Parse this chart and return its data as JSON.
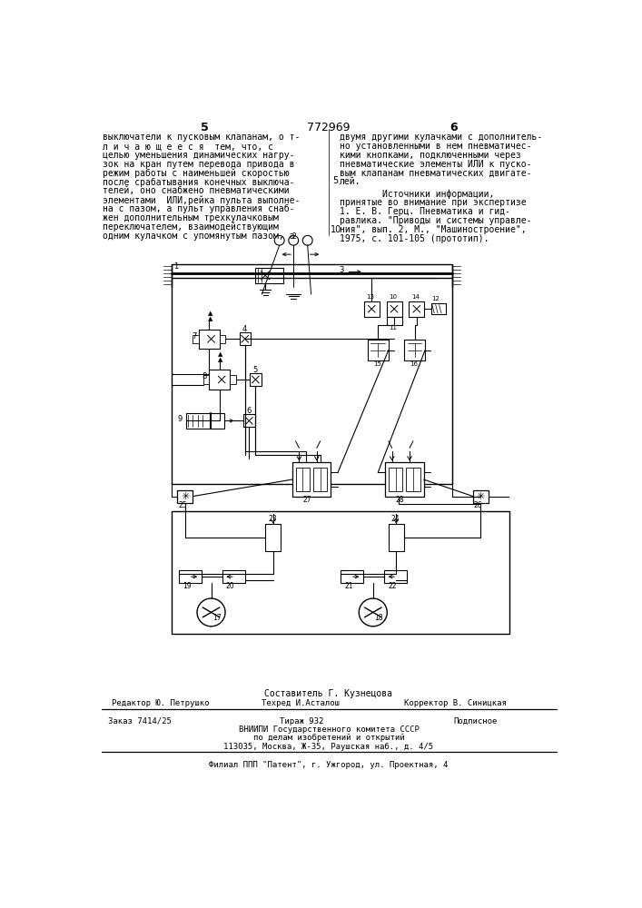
{
  "page_number_left": "5",
  "page_number_center": "772969",
  "page_number_right": "6",
  "left_column_text": [
    "выключатели к пусковым клапанам, о т-",
    "л и ч а ю щ е е с я  тем, что, с",
    "целью уменьшения динамических нагру-",
    "зок на кран путем перевода привода в",
    "режим работы с наименьшей скоростью",
    "после срабатывания конечных выключа-",
    "телей, оно снабжено пневматическими",
    "элементами  ИЛИ,рейка пульта выполне-",
    "на с пазом, а пульт управления снаб-",
    "жен дополнительным трехкулачковым",
    "переключателем, взаимодействующим",
    "одним кулачком с упомянутым пазом, а"
  ],
  "right_column_text": [
    "двумя другими кулачками с дополнитель-",
    "но установленными в нем пневматичес-",
    "кими кнопками, подключенными через",
    "пневматические элементы ИЛИ к пуско-",
    "вым клапанам пневматических двигате-",
    "лей.",
    "        Источники информации,",
    "принятые во внимание при экспертизе",
    "1. Е. В. Герц. Пневматика и гид-",
    "равлика. \"Приводы и системы управле-",
    "ния\", вып. 2, М., \"Машиностроение\",",
    "1975, с. 101-105 (прототип)."
  ],
  "line5_marker": "5",
  "line10_marker": "10",
  "footer_sestavitel": "Составитель Г. Кузнецова",
  "footer_redaktor": "Редактор Ю. Петрушко",
  "footer_tekhred": "Техред И.Асталош",
  "footer_korrektor": "Корректор В. Синицкая",
  "footer_zakaz": "Заказ 7414/25",
  "footer_tirazh": "Тираж 932",
  "footer_podpisnoe": "Подписное",
  "footer_vniipii": "ВНИИПИ Государственного комитета СССР",
  "footer_po_delam": "по делам изобретений и открытий",
  "footer_address": "113035, Москва, Ж-35, Раушская наб., д. 4/5",
  "footer_filial": "Филиал ППП \"Патент\", г. Ужгород, ул. Проектная, 4",
  "bg_color": "#ffffff"
}
